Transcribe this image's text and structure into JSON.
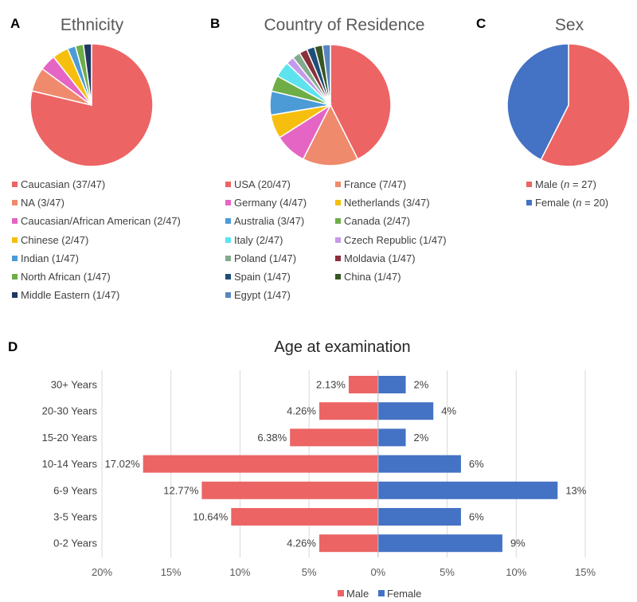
{
  "panels": {
    "a": {
      "letter": "A",
      "title": "Ethnicity",
      "legend": [
        {
          "label": "Caucasian (37/47)",
          "color": "#ec6464"
        },
        {
          "label": "NA (3/47)",
          "color": "#ef8a6d"
        },
        {
          "label": "Caucasian/African American (2/47)",
          "color": "#e565c4"
        },
        {
          "label": "Chinese (2/47)",
          "color": "#f6bf0f"
        },
        {
          "label": "Indian (1/47)",
          "color": "#4c9bd6"
        },
        {
          "label": "North African (1/47)",
          "color": "#6fad47"
        },
        {
          "label": "Middle Eastern (1/47)",
          "color": "#203864"
        }
      ]
    },
    "b": {
      "letter": "B",
      "title": "Country of Residence",
      "legend": [
        {
          "label": "USA (20/47)",
          "color": "#ec6464"
        },
        {
          "label": "France (7/47)",
          "color": "#ef8a6d"
        },
        {
          "label": "Germany (4/47)",
          "color": "#e565c4"
        },
        {
          "label": "Netherlands (3/47)",
          "color": "#f6bf0f"
        },
        {
          "label": "Australia (3/47)",
          "color": "#4c9bd6"
        },
        {
          "label": "Canada (2/47)",
          "color": "#6fad47"
        },
        {
          "label": "Italy (2/47)",
          "color": "#5ee3ee"
        },
        {
          "label": "Czech Republic (1/47)",
          "color": "#c39bea"
        },
        {
          "label": "Poland (1/47)",
          "color": "#82ab8d"
        },
        {
          "label": "Moldavia (1/47)",
          "color": "#8b2f3a"
        },
        {
          "label": "Spain (1/47)",
          "color": "#1f4e79"
        },
        {
          "label": "China (1/47)",
          "color": "#375623"
        },
        {
          "label": "Egypt (1/47)",
          "color": "#5a86bf"
        }
      ]
    },
    "c": {
      "letter": "C",
      "title": "Sex",
      "legend": [
        {
          "label_prefix": "Male (",
          "label_n": "n",
          "label_suffix": " = 27)",
          "color": "#ec6464"
        },
        {
          "label_prefix": "Female (",
          "label_n": "n",
          "label_suffix": " = 20)",
          "color": "#4472c4"
        }
      ]
    },
    "d": {
      "letter": "D",
      "title": "Age at examination"
    }
  },
  "chart_data": [
    {
      "type": "pie",
      "title": "Ethnicity",
      "labels": [
        "Caucasian",
        "NA",
        "Caucasian/African American",
        "Chinese",
        "Indian",
        "North African",
        "Middle Eastern"
      ],
      "values": [
        37,
        3,
        2,
        2,
        1,
        1,
        1
      ],
      "colors": [
        "#ec6464",
        "#ef8a6d",
        "#e565c4",
        "#f6bf0f",
        "#4c9bd6",
        "#6fad47",
        "#203864"
      ]
    },
    {
      "type": "pie",
      "title": "Country of Residence",
      "labels": [
        "USA",
        "France",
        "Germany",
        "Netherlands",
        "Australia",
        "Canada",
        "Italy",
        "Czech Republic",
        "Poland",
        "Moldavia",
        "Spain",
        "China",
        "Egypt"
      ],
      "values": [
        20,
        7,
        4,
        3,
        3,
        2,
        2,
        1,
        1,
        1,
        1,
        1,
        1
      ],
      "colors": [
        "#ec6464",
        "#ef8a6d",
        "#e565c4",
        "#f6bf0f",
        "#4c9bd6",
        "#6fad47",
        "#5ee3ee",
        "#c39bea",
        "#82ab8d",
        "#8b2f3a",
        "#1f4e79",
        "#375623",
        "#5a86bf"
      ]
    },
    {
      "type": "pie",
      "title": "Sex",
      "labels": [
        "Male",
        "Female"
      ],
      "values": [
        27,
        20
      ],
      "colors": [
        "#ec6464",
        "#4472c4"
      ]
    },
    {
      "type": "bar",
      "orientation": "horizontal-butterfly",
      "title": "Age at examination",
      "categories": [
        "30+ Years",
        "20-30 Years",
        "15-20 Years",
        "10-14 Years",
        "6-9 Years",
        "3-5 Years",
        "0-2 Years"
      ],
      "series": [
        {
          "name": "Male",
          "color": "#ec6464",
          "values": [
            2.13,
            4.26,
            6.38,
            17.02,
            12.77,
            10.64,
            4.26
          ],
          "labels": [
            "2.13%",
            "4.26%",
            "6.38%",
            "17.02%",
            "12.77%",
            "10.64%",
            "4.26%"
          ]
        },
        {
          "name": "Female",
          "color": "#4472c4",
          "values": [
            2,
            4,
            2,
            6,
            13,
            6,
            9
          ],
          "labels": [
            "2%",
            "4%",
            "2%",
            "6%",
            "13%",
            "6%",
            "9%"
          ]
        }
      ],
      "xlim": [
        -20,
        15
      ],
      "xticks": [
        -20,
        -15,
        -10,
        -5,
        0,
        5,
        10,
        15
      ],
      "xtick_labels": [
        "20%",
        "15%",
        "10%",
        "5%",
        "0%",
        "5%",
        "10%",
        "15%"
      ],
      "grid": true,
      "legend": "bottom"
    }
  ]
}
